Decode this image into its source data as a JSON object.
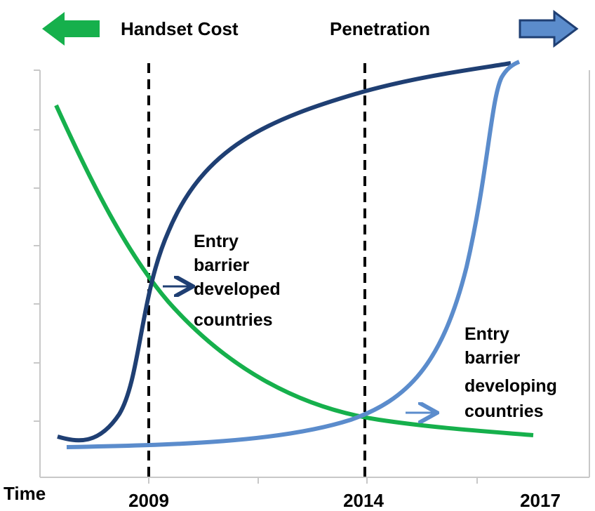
{
  "header": {
    "left_label": "Handset Cost",
    "right_label": "Penetration"
  },
  "annotations": [
    {
      "lines": [
        "Entry",
        "barrier",
        "developed",
        "countries"
      ]
    },
    {
      "lines": [
        "Entry",
        "barrier",
        "developing",
        "countries"
      ]
    }
  ],
  "x_axis": {
    "title": "Time",
    "labels": [
      "2009",
      "2014",
      "2017"
    ]
  }
}
